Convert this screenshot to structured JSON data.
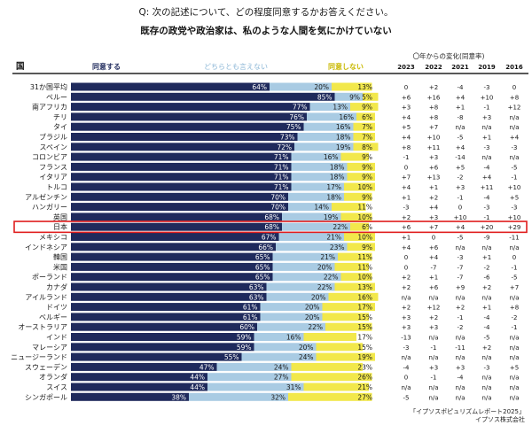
{
  "question": "Q: 次の記述について、どの程度同意するかお答えください。",
  "statement": "既存の政党や政治家は、私のような人間を気にかけていない",
  "header": {
    "country_col": "国",
    "agree": "同意する",
    "neither": "どちらとも言えない",
    "disagree": "同意しない",
    "change_title": "〇年からの変化(同意率)",
    "years": [
      "2023",
      "2022",
      "2021",
      "2019",
      "2016"
    ]
  },
  "colors": {
    "agree": "#1f2a5c",
    "neither": "#a9cbe3",
    "disagree": "#f2e84b",
    "highlight": "#e01e1e"
  },
  "highlight_country": "日本",
  "source_lines": [
    "「イプソスポピュリズムレポート2025」",
    "イプソス株式会社"
  ],
  "chart_data": {
    "type": "bar",
    "stacked": true,
    "orientation": "horizontal",
    "categories": [
      "31か国平均",
      "ペルー",
      "南アフリカ",
      "チリ",
      "タイ",
      "ブラジル",
      "スペイン",
      "コロンビア",
      "フランス",
      "イタリア",
      "トルコ",
      "アルゼンチン",
      "ハンガリー",
      "英国",
      "日本",
      "メキシコ",
      "インドネシア",
      "韓国",
      "米国",
      "ポーランド",
      "カナダ",
      "アイルランド",
      "ドイツ",
      "ベルギー",
      "オーストラリア",
      "インド",
      "マレーシア",
      "ニュージーランド",
      "スウェーデン",
      "オランダ",
      "スイス",
      "シンガポール"
    ],
    "series": [
      {
        "name": "同意する",
        "values": [
          64,
          85,
          77,
          76,
          75,
          73,
          72,
          71,
          71,
          71,
          71,
          70,
          70,
          68,
          68,
          67,
          66,
          65,
          65,
          65,
          63,
          63,
          61,
          61,
          60,
          59,
          59,
          55,
          47,
          44,
          44,
          38
        ]
      },
      {
        "name": "どちらとも言えない",
        "values": [
          20,
          9,
          13,
          16,
          16,
          18,
          19,
          16,
          18,
          18,
          17,
          18,
          14,
          19,
          22,
          21,
          23,
          21,
          20,
          22,
          22,
          20,
          20,
          20,
          22,
          16,
          20,
          24,
          24,
          27,
          31,
          32
        ]
      },
      {
        "name": "同意しない",
        "values": [
          13,
          5,
          9,
          6,
          7,
          7,
          8,
          9,
          9,
          9,
          10,
          9,
          11,
          10,
          6,
          10,
          9,
          11,
          11,
          10,
          13,
          16,
          17,
          15,
          15,
          17,
          15,
          19,
          23,
          26,
          21,
          27
        ]
      }
    ],
    "value_labels": {
      "agree": [
        "64%",
        "85%",
        "77%",
        "76%",
        "75%",
        "73%",
        "72%",
        "71%",
        "71%",
        "71%",
        "71%",
        "70%",
        "70%",
        "68%",
        "68%",
        "67%",
        "66%",
        "65%",
        "65%",
        "65%",
        "63%",
        "63%",
        "61%",
        "61%",
        "60%",
        "59%",
        "59%",
        "55%",
        "47%",
        "44%",
        "44%",
        "38%"
      ],
      "neither": [
        "20%",
        "9%",
        "13%",
        "16%",
        "16%",
        "18%",
        "19%",
        "16%",
        "18%",
        "18%",
        "17%",
        "18%",
        "14%",
        "19%",
        "22%",
        "21%",
        "23%",
        "21%",
        "20%",
        "22%",
        "22%",
        "20%",
        "20%",
        "20%",
        "22%",
        "16%",
        "20%",
        "24%",
        "24%",
        "27%",
        "31%",
        "32%"
      ],
      "disagree": [
        "13%",
        "5%",
        "9%",
        "6%",
        "7%",
        "7%",
        "8%",
        "9%",
        "9%",
        "9%",
        "10%",
        "9%",
        "11%",
        "10%",
        "6%",
        "10%",
        "9%",
        "11%",
        "11%",
        "10%",
        "13%",
        "16%",
        "17%",
        "15%",
        "15%",
        "17%",
        "15%",
        "19%",
        "23%",
        "26%",
        "21%",
        "27%"
      ]
    },
    "change_table": {
      "years": [
        "2023",
        "2022",
        "2021",
        "2019",
        "2016"
      ],
      "rows": [
        [
          "0",
          "+2",
          "-4",
          "-3",
          "0"
        ],
        [
          "+6",
          "+16",
          "+4",
          "+10",
          "+8"
        ],
        [
          "+3",
          "+8",
          "+1",
          "-1",
          "+12"
        ],
        [
          "+4",
          "+8",
          "-8",
          "+3",
          "n/a"
        ],
        [
          "+5",
          "+7",
          "n/a",
          "n/a",
          "n/a"
        ],
        [
          "+4",
          "+10",
          "-5",
          "+1",
          "+4"
        ],
        [
          "+8",
          "+11",
          "+4",
          "-3",
          "-3"
        ],
        [
          "-1",
          "+3",
          "-14",
          "n/a",
          "n/a"
        ],
        [
          "0",
          "+6",
          "+5",
          "-4",
          "-5"
        ],
        [
          "+7",
          "+13",
          "-2",
          "+4",
          "-1"
        ],
        [
          "+4",
          "+1",
          "+3",
          "+11",
          "+10"
        ],
        [
          "+1",
          "+2",
          "-1",
          "-4",
          "+5"
        ],
        [
          "-3",
          "+4",
          "0",
          "-3",
          "-3"
        ],
        [
          "+2",
          "+3",
          "+10",
          "-1",
          "+10"
        ],
        [
          "+6",
          "+7",
          "+4",
          "+20",
          "+29"
        ],
        [
          "+1",
          "0",
          "-5",
          "-9",
          "-11"
        ],
        [
          "+4",
          "+6",
          "n/a",
          "n/a",
          "n/a"
        ],
        [
          "0",
          "+4",
          "-3",
          "+1",
          "0"
        ],
        [
          "0",
          "-7",
          "-7",
          "-2",
          "-1"
        ],
        [
          "+2",
          "+1",
          "-7",
          "-6",
          "-5"
        ],
        [
          "+2",
          "+6",
          "+9",
          "+2",
          "+7"
        ],
        [
          "n/a",
          "n/a",
          "n/a",
          "n/a",
          "n/a"
        ],
        [
          "+2",
          "+12",
          "+2",
          "+1",
          "+8"
        ],
        [
          "+3",
          "+2",
          "-1",
          "-4",
          "-2"
        ],
        [
          "+3",
          "+3",
          "-2",
          "-4",
          "-1"
        ],
        [
          "-13",
          "n/a",
          "n/a",
          "-5",
          "n/a"
        ],
        [
          "-3",
          "-1",
          "-11",
          "+2",
          "n/a"
        ],
        [
          "n/a",
          "n/a",
          "n/a",
          "n/a",
          "n/a"
        ],
        [
          "-4",
          "+3",
          "+3",
          "-3",
          "+5"
        ],
        [
          "0",
          "-1",
          "-4",
          "n/a",
          "n/a"
        ],
        [
          "n/a",
          "n/a",
          "n/a",
          "n/a",
          "n/a"
        ],
        [
          "-5",
          "n/a",
          "n/a",
          "n/a",
          "n/a"
        ]
      ]
    },
    "xlim": [
      0,
      100
    ]
  }
}
